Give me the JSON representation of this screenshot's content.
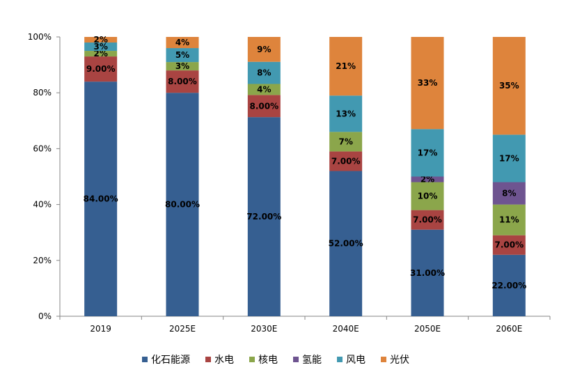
{
  "chart_data": {
    "type": "bar",
    "stacked": true,
    "categories": [
      "2019",
      "2025E",
      "2030E",
      "2040E",
      "2050E",
      "2060E"
    ],
    "ylim": [
      0,
      100
    ],
    "yticks": [
      "0%",
      "20%",
      "40%",
      "60%",
      "80%",
      "100%"
    ],
    "grid": false,
    "legend_position": "bottom",
    "series": [
      {
        "name": "化石能源",
        "color": "#365F91",
        "values": [
          84,
          80,
          72,
          52,
          31,
          22
        ],
        "labels": [
          "84.00%",
          "80.00%",
          "72.00%",
          "52.00%",
          "31.00%",
          "22.00%"
        ]
      },
      {
        "name": "水电",
        "color": "#A94442",
        "values": [
          9,
          8,
          8,
          7,
          7,
          7
        ],
        "labels": [
          "9.00%",
          "8.00%",
          "8.00%",
          "7.00%",
          "7.00%",
          "7.00%"
        ]
      },
      {
        "name": "核电",
        "color": "#8BA64B",
        "values": [
          2,
          3,
          4,
          7,
          10,
          11
        ],
        "labels": [
          "2%",
          "3%",
          "4%",
          "7%",
          "10%",
          "11%"
        ]
      },
      {
        "name": "氢能",
        "color": "#6E5490",
        "values": [
          0,
          0,
          0,
          0,
          2,
          8
        ],
        "labels": [
          "",
          "",
          "",
          "",
          "2%",
          "8%"
        ]
      },
      {
        "name": "风电",
        "color": "#4299B1",
        "values": [
          3,
          5,
          8,
          13,
          17,
          17
        ],
        "labels": [
          "3%",
          "5%",
          "8%",
          "13%",
          "17%",
          "17%"
        ]
      },
      {
        "name": "光伏",
        "color": "#DE843C",
        "values": [
          2,
          4,
          9,
          21,
          33,
          35
        ],
        "labels": [
          "2%",
          "4%",
          "9%",
          "21%",
          "33%",
          "35%"
        ]
      }
    ]
  }
}
